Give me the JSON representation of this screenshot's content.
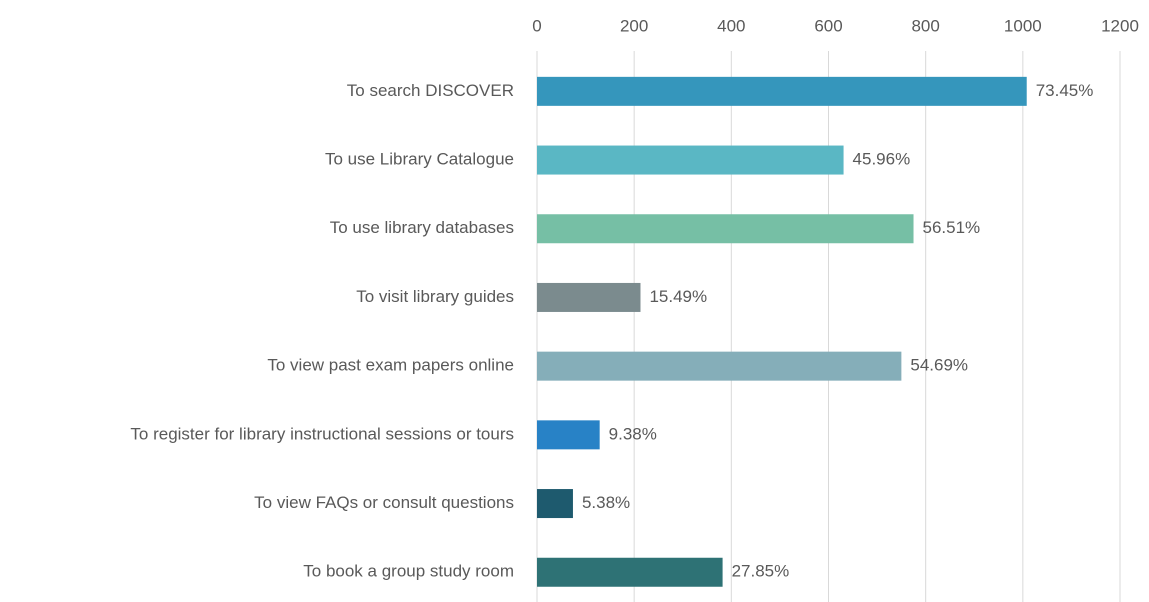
{
  "chart_data": {
    "type": "barh",
    "categories": [
      "To search DISCOVER",
      "To use Library Catalogue",
      "To use library databases",
      "To visit library guides",
      "To view past exam papers online",
      "To register for library instructional sessions or tours",
      "To view FAQs or consult questions",
      "To book a group study room"
    ],
    "values": [
      1008,
      631,
      775,
      213,
      750,
      129,
      74,
      382
    ],
    "value_labels": [
      "73.45%",
      "45.96%",
      "56.51%",
      "15.49%",
      "54.69%",
      "9.38%",
      "5.38%",
      "27.85%"
    ],
    "colors": [
      "#3596bc",
      "#5ab7c4",
      "#76bfa5",
      "#7b8b8e",
      "#85aeb9",
      "#2882c6",
      "#1e5a6e",
      "#2e7275"
    ],
    "xlim": [
      0,
      1200
    ],
    "xticks": [
      0,
      200,
      400,
      600,
      800,
      1000,
      1200
    ],
    "grid": true
  }
}
